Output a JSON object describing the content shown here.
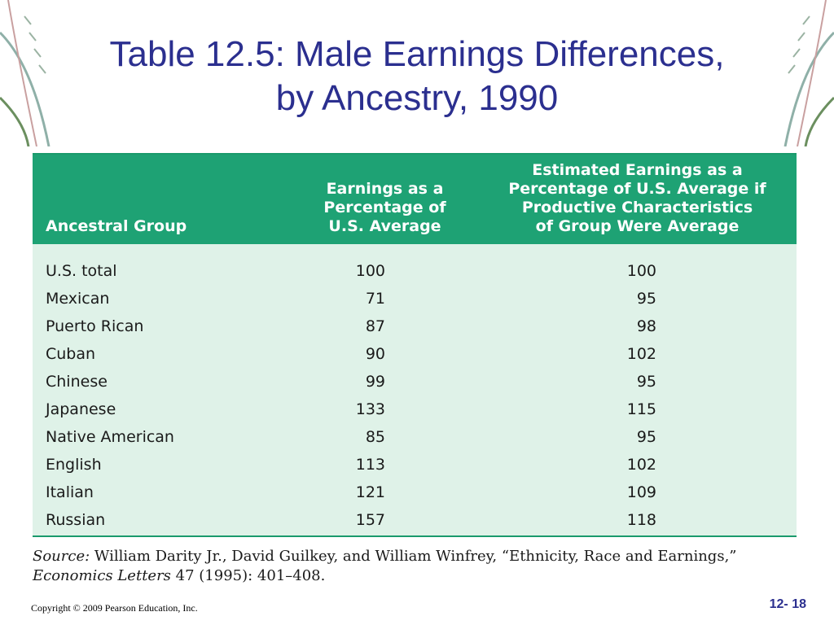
{
  "slide": {
    "title_line1": "Table 12.5: Male Earnings Differences,",
    "title_line2": "by Ancestry, 1990"
  },
  "table": {
    "headers": {
      "group": "Ancestral Group",
      "earnings_lines": [
        "Earnings as a",
        "Percentage of",
        "U.S. Average"
      ],
      "estimated_lines": [
        "Estimated Earnings as a",
        "Percentage of U.S. Average if",
        "Productive Characteristics",
        "of Group Were Average"
      ]
    },
    "rows": [
      {
        "group": "U.S. total",
        "earnings": "100",
        "estimated": "100"
      },
      {
        "group": "Mexican",
        "earnings": "71",
        "estimated": "95"
      },
      {
        "group": "Puerto Rican",
        "earnings": "87",
        "estimated": "98"
      },
      {
        "group": "Cuban",
        "earnings": "90",
        "estimated": "102"
      },
      {
        "group": "Chinese",
        "earnings": "99",
        "estimated": "95"
      },
      {
        "group": "Japanese",
        "earnings": "133",
        "estimated": "115"
      },
      {
        "group": "Native American",
        "earnings": "85",
        "estimated": "95"
      },
      {
        "group": "English",
        "earnings": "113",
        "estimated": "102"
      },
      {
        "group": "Italian",
        "earnings": "121",
        "estimated": "109"
      },
      {
        "group": "Russian",
        "earnings": "157",
        "estimated": "118"
      }
    ]
  },
  "source": {
    "label": "Source:",
    "text": " William Darity Jr., David Guilkey, and William Winfrey, “Ethnicity, Race and Earnings,” ",
    "journal": "Economics Letters",
    "citation": " 47 (1995): 401–408."
  },
  "footer": {
    "copyright": "Copyright © 2009 Pearson Education, Inc.",
    "page": "12- 18"
  },
  "colors": {
    "title": "#2b2f8f",
    "header_bg": "#1ea274",
    "body_bg": "#dff2e8"
  }
}
